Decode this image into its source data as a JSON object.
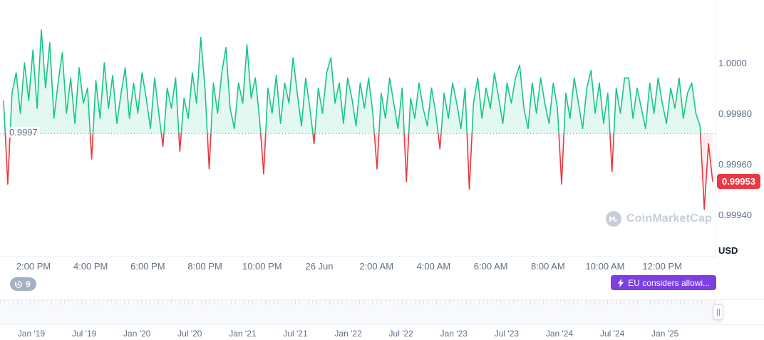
{
  "colors": {
    "up": "#16c784",
    "up_fill": "rgba(22,199,132,0.12)",
    "down": "#ea3943",
    "down_fill": "rgba(234,57,67,0.08)",
    "baseline_line": "#8d97a8",
    "axis_text": "#616e85",
    "badge_red": "#ea3943",
    "badge_purple": "#7d3fe2",
    "badge_gray": "#a6b0c3",
    "watermark": "#c7ceda"
  },
  "chart_data": {
    "type": "line",
    "unit_label": "USD",
    "baseline": {
      "value": 0.99972,
      "label": "0.9997"
    },
    "current_price": {
      "value": 0.99953,
      "label": "0.99953"
    },
    "y_axis": {
      "ticks": [
        {
          "value": 1.0,
          "label": "1.0000"
        },
        {
          "value": 0.9998,
          "label": "0.99980"
        },
        {
          "value": 0.9996,
          "label": "0.99960"
        },
        {
          "value": 0.9994,
          "label": "0.99940"
        }
      ],
      "range": [
        0.9992,
        1.0002
      ],
      "grid": false,
      "legend": "none"
    },
    "x_axis": {
      "labels": [
        "2:00 PM",
        "4:00 PM",
        "6:00 PM",
        "8:00 PM",
        "10:00 PM",
        "26 Jun",
        "2:00 AM",
        "4:00 AM",
        "6:00 AM",
        "8:00 AM",
        "10:00 AM",
        "12:00 PM"
      ]
    },
    "values": [
      0.99985,
      0.99952,
      0.99988,
      0.99996,
      0.9998,
      1.0,
      0.99985,
      1.00005,
      0.99982,
      1.00013,
      0.9999,
      1.00008,
      0.99978,
      0.99992,
      1.00004,
      0.9998,
      0.99994,
      0.99976,
      0.99998,
      0.99984,
      0.9999,
      0.99962,
      0.99993,
      0.99978,
      1.0,
      0.99982,
      0.99995,
      0.99976,
      0.99988,
      0.99998,
      0.99978,
      0.99992,
      0.9998,
      0.99996,
      0.99986,
      0.99974,
      0.99994,
      0.9998,
      0.99967,
      0.9999,
      0.99982,
      0.99994,
      0.99965,
      0.99986,
      0.99978,
      0.99996,
      0.99984,
      1.0001,
      0.9999,
      0.99958,
      0.99992,
      0.9998,
      0.99996,
      1.00006,
      0.99982,
      0.99974,
      0.99992,
      0.99984,
      1.00007,
      0.99986,
      0.99994,
      0.99978,
      0.99956,
      0.9999,
      0.9998,
      0.99995,
      0.99976,
      0.99992,
      0.99984,
      1.00002,
      0.99988,
      0.99975,
      0.99994,
      0.99982,
      0.99968,
      0.9999,
      0.9998,
      0.99996,
      1.00002,
      0.99984,
      0.99992,
      0.99976,
      0.99994,
      0.99986,
      0.99975,
      0.99992,
      0.99982,
      0.99994,
      0.9998,
      0.99958,
      0.99988,
      0.99978,
      0.99994,
      0.99984,
      0.99974,
      0.9999,
      0.99953,
      0.99986,
      0.99978,
      0.99992,
      0.99982,
      0.99975,
      0.9999,
      0.9998,
      0.99966,
      0.99988,
      0.99978,
      0.99992,
      0.99984,
      0.99974,
      0.9999,
      0.9995,
      0.99984,
      0.99994,
      0.99978,
      0.9999,
      0.99982,
      0.99996,
      0.99986,
      0.99976,
      0.99992,
      0.99984,
      0.99994,
      0.99999,
      0.99982,
      0.99974,
      0.99992,
      0.9998,
      0.99994,
      0.99984,
      0.99976,
      0.99992,
      0.99982,
      0.99952,
      0.99988,
      0.99978,
      0.99994,
      0.99984,
      0.99974,
      0.9999,
      0.99997,
      0.9998,
      0.99992,
      0.99976,
      0.99988,
      0.99957,
      0.9999,
      0.9998,
      0.99994,
      0.99994,
      0.99978,
      0.9999,
      0.99982,
      0.99974,
      0.99992,
      0.9998,
      0.99994,
      0.99984,
      0.99976,
      0.9999,
      0.99982,
      0.99994,
      0.99978,
      0.99988,
      0.99992,
      0.9998,
      0.99975,
      0.99942,
      0.99968,
      0.99953
    ]
  },
  "annotations": {
    "history_count": "9",
    "news_text": "EU considers allowi..."
  },
  "watermark": {
    "text": "CoinMarketCap"
  },
  "navigator": {
    "dates": [
      "Jan '19",
      "Jul '19",
      "Jan '20",
      "Jul '20",
      "Jan '21",
      "Jul '21",
      "Jan '22",
      "Jul '22",
      "Jan '23",
      "Jul '23",
      "Jan '24",
      "Jul '24",
      "Jan '25"
    ]
  }
}
